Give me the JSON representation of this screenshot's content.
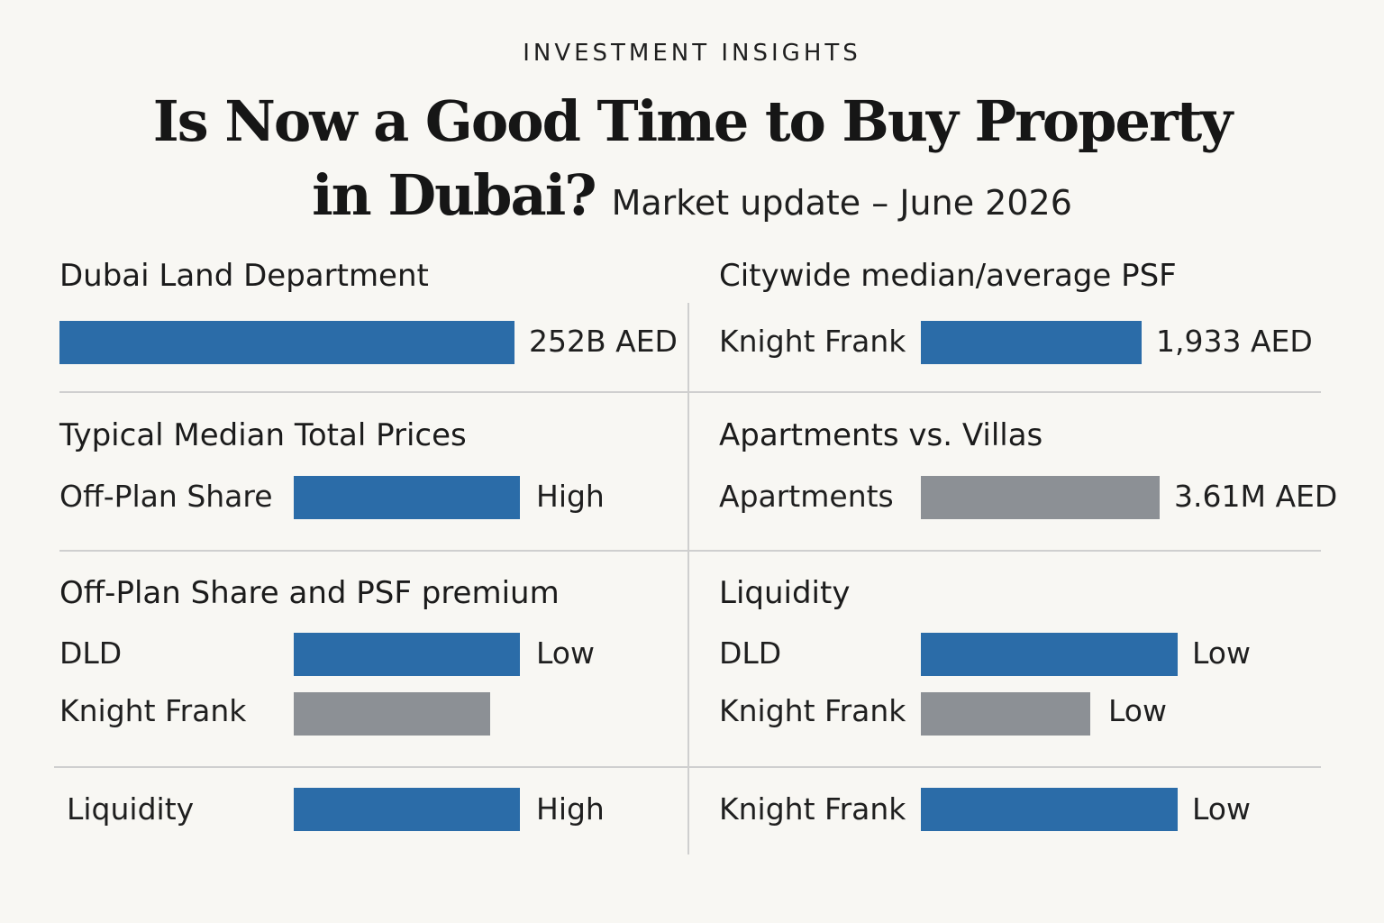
{
  "header": {
    "eyebrow": "INVESTMENT INSIGHTS",
    "title_line1": "Is Now a Good Time to Buy Property",
    "title_line2": "in Dubai?",
    "subtitle": "Market update – June 2026"
  },
  "colors": {
    "primary": "#2b6ca8",
    "secondary": "#8c9095"
  },
  "chart_data": [
    {
      "type": "bar",
      "title": "Dubai Land Department",
      "rows": [
        {
          "label": "",
          "value": 252,
          "value_label": "252B AED",
          "color": "blue"
        }
      ]
    },
    {
      "type": "bar",
      "title": "Citywide median/average PSF",
      "rows": [
        {
          "label": "Knight Frank",
          "value": 1933,
          "value_label": "1,933 AED",
          "color": "blue"
        }
      ]
    },
    {
      "type": "bar",
      "title": "Typical Median Total Prices",
      "rows": [
        {
          "label": "Off-Plan Share",
          "value_label": "High",
          "color": "blue"
        }
      ]
    },
    {
      "type": "bar",
      "title": "Apartments vs.  Villas",
      "rows": [
        {
          "label": "Apartments",
          "value": 3.61,
          "value_label": "3.61M AED",
          "color": "gray"
        }
      ]
    },
    {
      "type": "bar",
      "title": "Off-Plan Share and PSF premium",
      "rows": [
        {
          "label": "DLD",
          "value_label": "Low",
          "color": "blue"
        },
        {
          "label": "Knight Frank",
          "value_label": "",
          "color": "gray"
        }
      ]
    },
    {
      "type": "bar",
      "title": "Liquidity",
      "rows": [
        {
          "label": "DLD",
          "value_label": "Low",
          "color": "blue"
        },
        {
          "label": "Knight Frank",
          "value_label": "Low",
          "color": "gray"
        }
      ]
    },
    {
      "type": "bar",
      "title": "",
      "rows": [
        {
          "label": "Liquidity",
          "value_label": "High",
          "color": "blue"
        }
      ]
    },
    {
      "type": "bar",
      "title": "",
      "rows": [
        {
          "label": "Knight Frank",
          "value_label": "Low",
          "color": "blue"
        }
      ]
    }
  ]
}
